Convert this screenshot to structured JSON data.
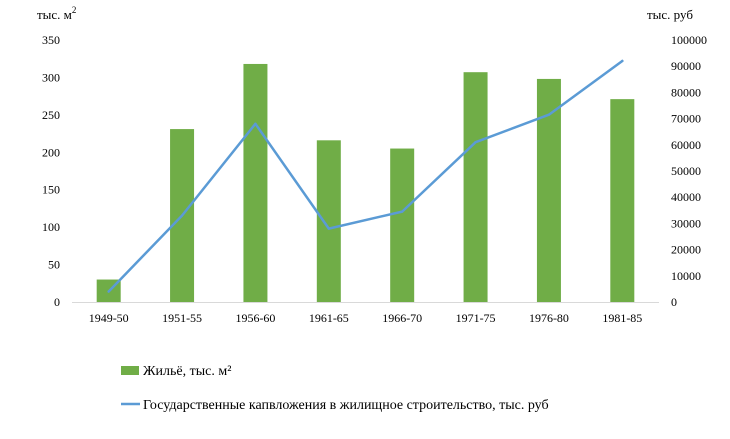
{
  "chart_data": {
    "type": "bar",
    "categories": [
      "1949-50",
      "1951-55",
      "1956-60",
      "1961-65",
      "1966-70",
      "1971-75",
      "1976-80",
      "1981-85"
    ],
    "left_unit_label": "тыс. м",
    "left_unit_superscript": "2",
    "right_unit_label": "тыс. руб",
    "y_left": {
      "min": 0,
      "max": 350,
      "ticks": [
        0,
        50,
        100,
        150,
        200,
        250,
        300,
        350
      ]
    },
    "y_right": {
      "min": 0,
      "max": 100000,
      "ticks": [
        0,
        10000,
        20000,
        30000,
        40000,
        50000,
        60000,
        70000,
        80000,
        90000,
        100000
      ]
    },
    "grid": false,
    "legend_position": "bottom",
    "series": [
      {
        "name": "Жильё, тыс. м²",
        "type": "bar",
        "axis": "left",
        "color": "#70ad47",
        "values": [
          30,
          231,
          318,
          216,
          205,
          307,
          298,
          271
        ]
      },
      {
        "name": "Государственные капвложения в жилищное строительство, тыс. руб",
        "type": "line",
        "axis": "right",
        "color": "#5b9bd5",
        "values": [
          4000,
          33000,
          68000,
          28000,
          34500,
          61000,
          71500,
          92000
        ]
      }
    ]
  }
}
